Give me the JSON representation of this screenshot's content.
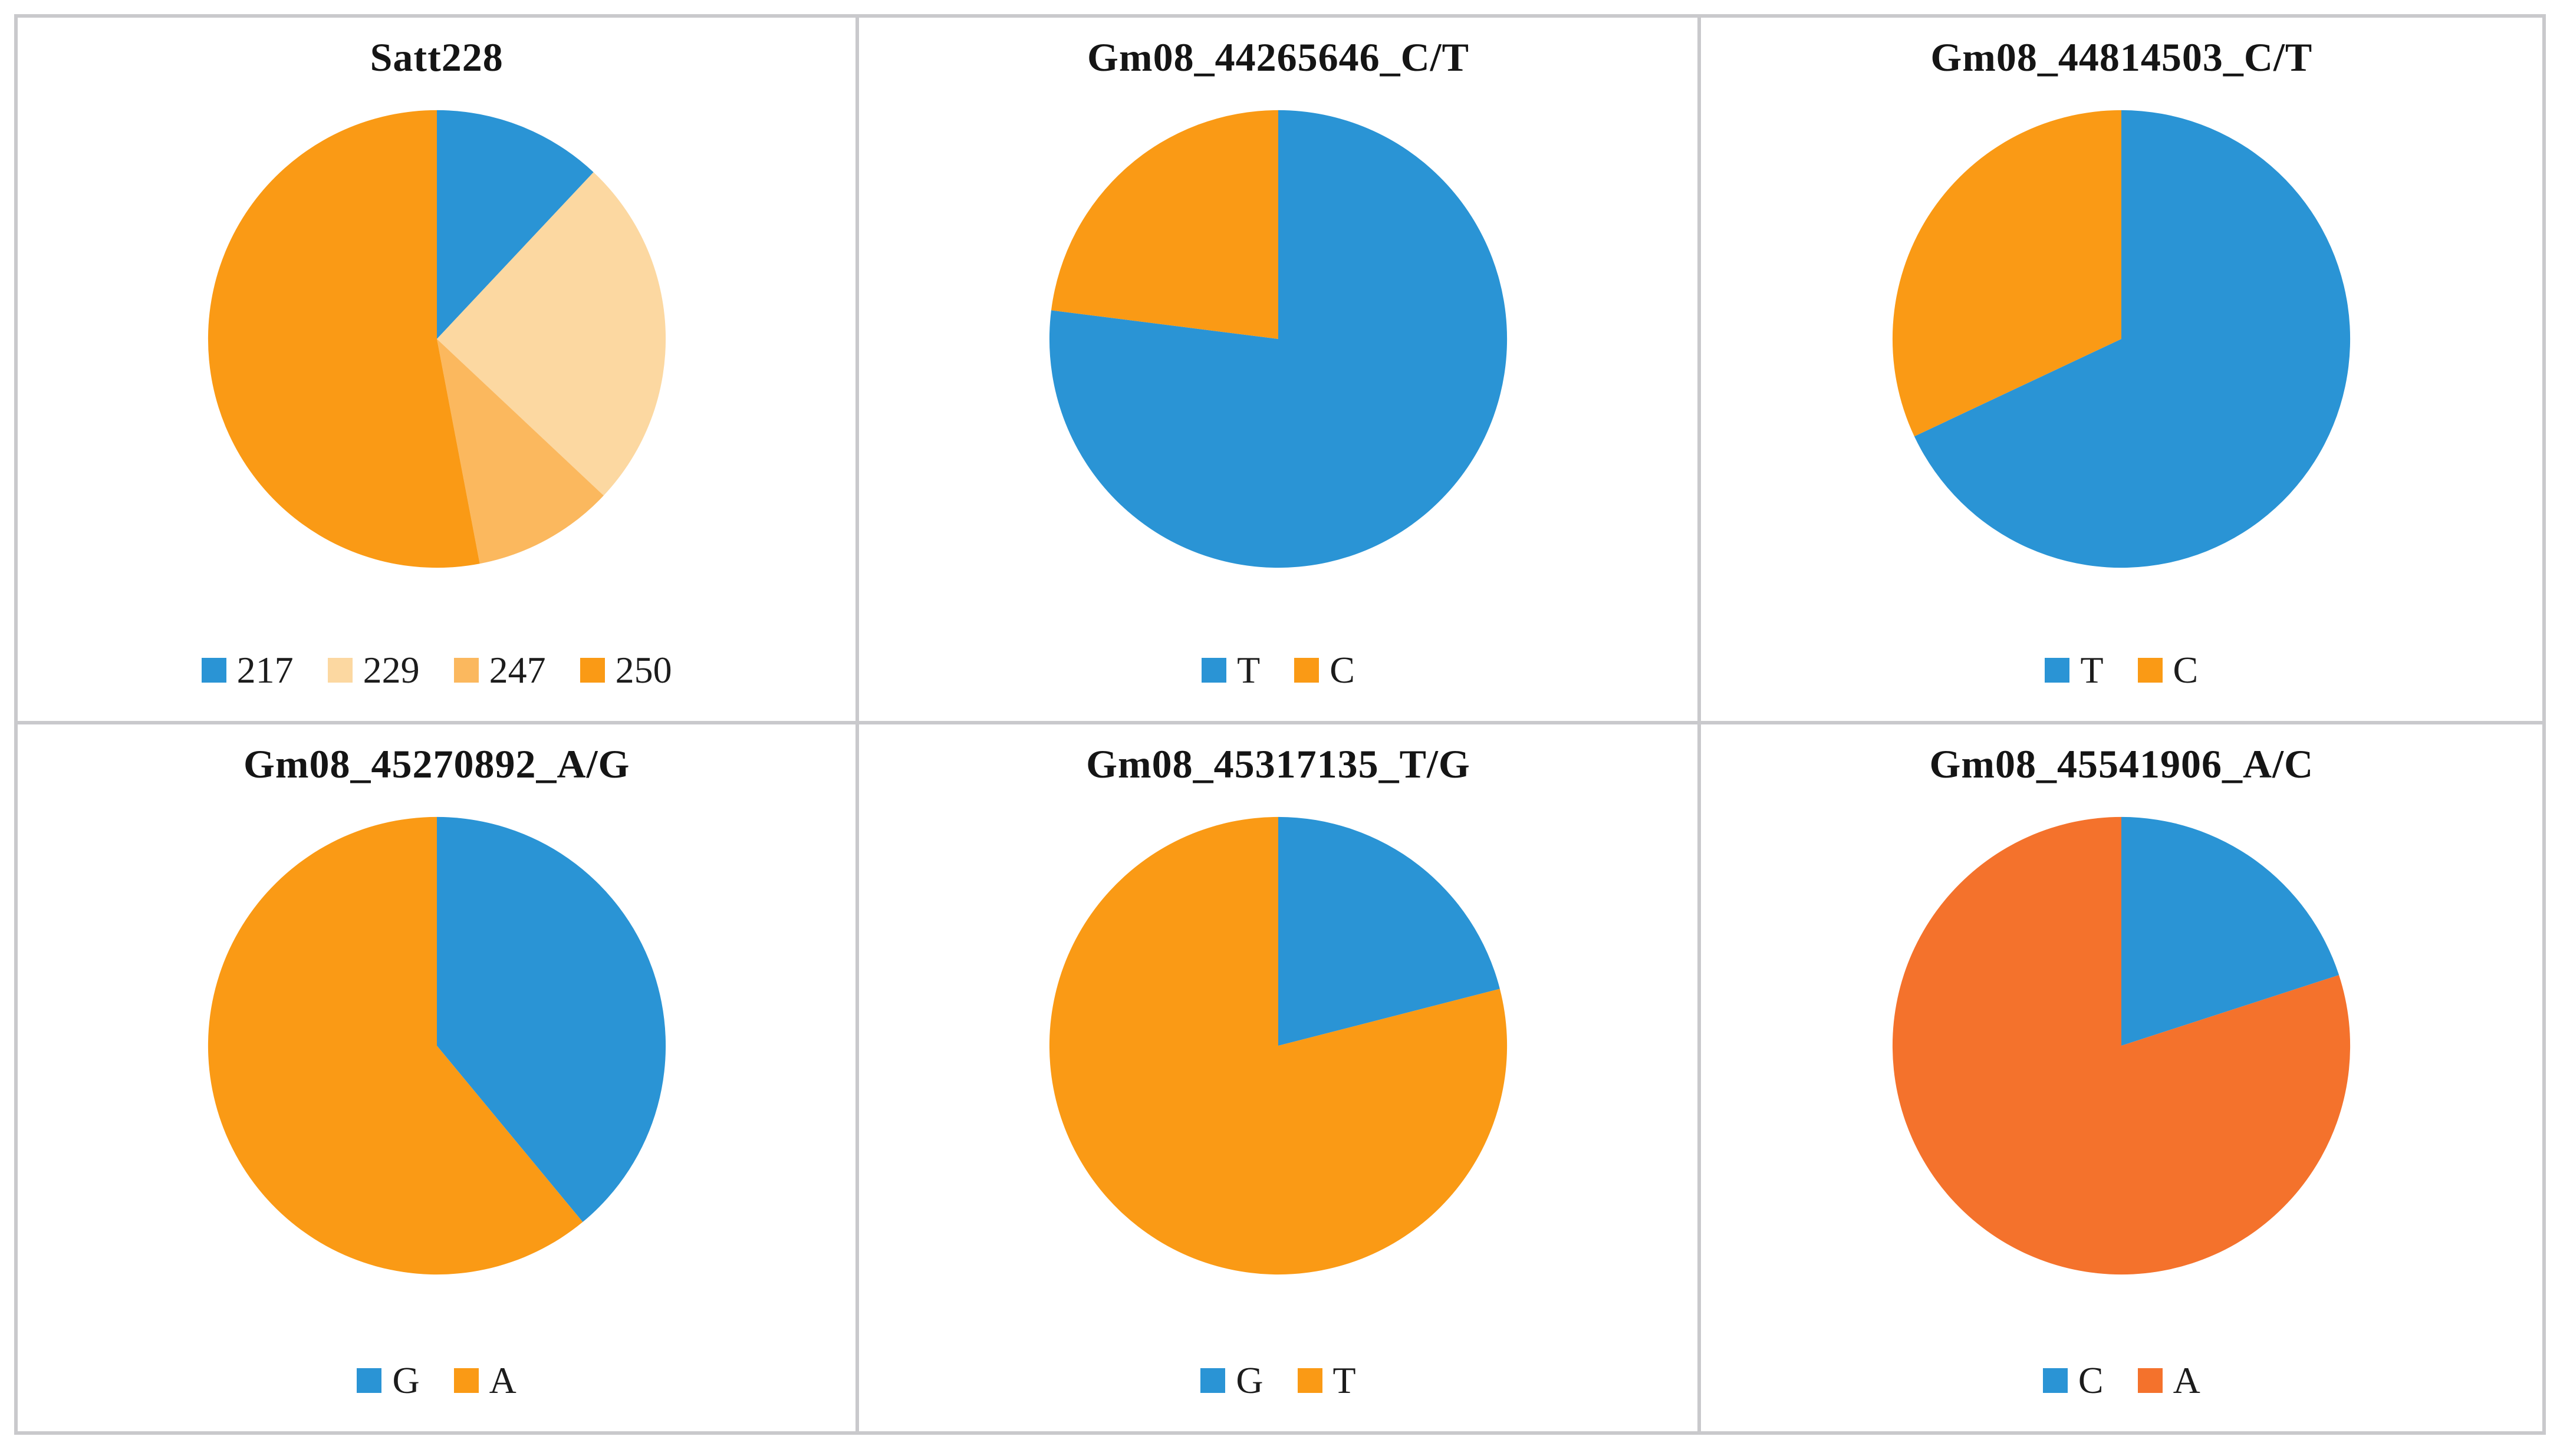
{
  "figure": {
    "background": "#ffffff",
    "border_color": "#c9c9cc",
    "title_color": "#151515",
    "legend_text_color": "#1c1c1c",
    "layout": "2x3-grid-of-pie-charts"
  },
  "palette": {
    "blue": "#2a94d5",
    "orange": "#fa9a15",
    "pale_orange": "#fcd8a1",
    "mid_orange": "#fbb85e",
    "red_orange": "#f4722c"
  },
  "chart_data": [
    {
      "type": "pie",
      "title": "Satt228",
      "labels": [
        "217",
        "229",
        "247",
        "250"
      ],
      "values": [
        12,
        25,
        10,
        53
      ],
      "unit": "percent",
      "colors": [
        "#2a94d5",
        "#fcd8a1",
        "#fbb85e",
        "#fa9a15"
      ],
      "start_angle_deg": 0,
      "direction": "clockwise",
      "legend_position": "bottom"
    },
    {
      "type": "pie",
      "title": "Gm08_44265646_C/T",
      "labels": [
        "T",
        "C"
      ],
      "values": [
        77,
        23
      ],
      "unit": "percent",
      "colors": [
        "#2a94d5",
        "#fa9a15"
      ],
      "start_angle_deg": 0,
      "direction": "clockwise",
      "legend_position": "bottom"
    },
    {
      "type": "pie",
      "title": "Gm08_44814503_C/T",
      "labels": [
        "T",
        "C"
      ],
      "values": [
        68,
        32
      ],
      "unit": "percent",
      "colors": [
        "#2a94d5",
        "#fa9a15"
      ],
      "start_angle_deg": 0,
      "direction": "clockwise",
      "legend_position": "bottom"
    },
    {
      "type": "pie",
      "title": "Gm08_45270892_A/G",
      "labels": [
        "G",
        "A"
      ],
      "values": [
        39,
        61
      ],
      "unit": "percent",
      "colors": [
        "#2a94d5",
        "#fa9a15"
      ],
      "start_angle_deg": 0,
      "direction": "clockwise",
      "legend_position": "bottom"
    },
    {
      "type": "pie",
      "title": "Gm08_45317135_T/G",
      "labels": [
        "G",
        "T"
      ],
      "values": [
        21,
        79
      ],
      "unit": "percent",
      "colors": [
        "#2a94d5",
        "#fa9a15"
      ],
      "start_angle_deg": 0,
      "direction": "clockwise",
      "legend_position": "bottom"
    },
    {
      "type": "pie",
      "title": "Gm08_45541906_A/C",
      "labels": [
        "C",
        "A"
      ],
      "values": [
        20,
        80
      ],
      "unit": "percent",
      "colors": [
        "#2a94d5",
        "#f4722c"
      ],
      "start_angle_deg": 0,
      "direction": "clockwise",
      "legend_position": "bottom"
    }
  ]
}
